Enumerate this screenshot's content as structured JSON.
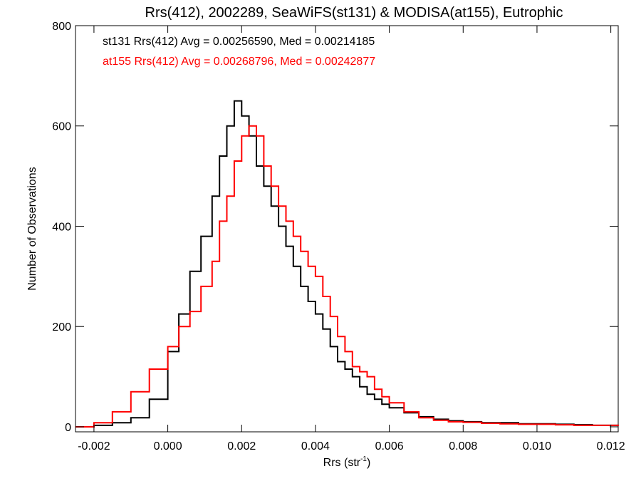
{
  "chart_data": {
    "type": "line",
    "title": "Rrs(412), 2002289, SeaWiFS(st131) & MODISA(at155), Eutrophic",
    "xlabel": "Rrs (str",
    "xlabel_sup": "-1",
    "xlabel_close": ")",
    "ylabel": "Number of Observations",
    "xlim": [
      -0.0025,
      0.0122
    ],
    "ylim": [
      -10,
      800
    ],
    "xticks": [
      -0.002,
      0.0,
      0.002,
      0.004,
      0.006,
      0.008,
      0.01,
      0.012
    ],
    "xtick_labels": [
      "-0.002",
      "0.000",
      "0.002",
      "0.004",
      "0.006",
      "0.008",
      "0.010",
      "0.012"
    ],
    "yticks": [
      0,
      200,
      400,
      600,
      800
    ],
    "ytick_labels": [
      "0",
      "200",
      "400",
      "600",
      "800"
    ],
    "grid": false,
    "legend": [
      {
        "text": "st131 Rrs(412) Avg = 0.00256590, Med = 0.00214185",
        "color": "#000000"
      },
      {
        "text": "at155 Rrs(412) Avg = 0.00268796, Med = 0.00242877",
        "color": "#ff0000"
      }
    ],
    "series": [
      {
        "color": "#000000",
        "x": [
          -0.0025,
          -0.002,
          -0.0015,
          -0.001,
          -0.0005,
          0.0,
          0.0003,
          0.0006,
          0.0009,
          0.0012,
          0.0014,
          0.0016,
          0.0018,
          0.002,
          0.0022,
          0.0024,
          0.0026,
          0.0028,
          0.003,
          0.0032,
          0.0034,
          0.0036,
          0.0038,
          0.004,
          0.0042,
          0.0044,
          0.0046,
          0.0048,
          0.005,
          0.0052,
          0.0054,
          0.0056,
          0.0058,
          0.006,
          0.0064,
          0.0068,
          0.0072,
          0.0076,
          0.008,
          0.0085,
          0.009,
          0.0095,
          0.01,
          0.0105,
          0.011,
          0.0115,
          0.0122
        ],
        "y": [
          0,
          3,
          8,
          18,
          55,
          150,
          225,
          310,
          380,
          460,
          540,
          600,
          650,
          620,
          580,
          520,
          480,
          440,
          400,
          360,
          320,
          280,
          250,
          225,
          195,
          160,
          130,
          115,
          100,
          80,
          65,
          55,
          45,
          38,
          28,
          20,
          15,
          12,
          10,
          8,
          8,
          6,
          6,
          5,
          4,
          3,
          3
        ]
      },
      {
        "color": "#ff0000",
        "x": [
          -0.0025,
          -0.002,
          -0.0015,
          -0.001,
          -0.0005,
          0.0,
          0.0003,
          0.0006,
          0.0009,
          0.0012,
          0.0014,
          0.0016,
          0.0018,
          0.002,
          0.0022,
          0.0024,
          0.0026,
          0.0028,
          0.003,
          0.0032,
          0.0034,
          0.0036,
          0.0038,
          0.004,
          0.0042,
          0.0044,
          0.0046,
          0.0048,
          0.005,
          0.0052,
          0.0054,
          0.0056,
          0.0058,
          0.006,
          0.0064,
          0.0068,
          0.0072,
          0.0076,
          0.008,
          0.0085,
          0.009,
          0.0095,
          0.01,
          0.0105,
          0.011,
          0.0115,
          0.0122
        ],
        "y": [
          0,
          8,
          30,
          70,
          115,
          160,
          200,
          230,
          280,
          330,
          410,
          460,
          530,
          580,
          600,
          580,
          520,
          480,
          440,
          410,
          380,
          350,
          320,
          300,
          260,
          220,
          180,
          150,
          120,
          110,
          100,
          75,
          60,
          48,
          30,
          18,
          13,
          10,
          9,
          7,
          6,
          5,
          5,
          4,
          3,
          3,
          2
        ]
      }
    ]
  }
}
